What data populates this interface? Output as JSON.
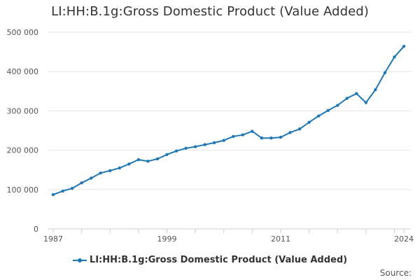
{
  "chart_data": {
    "type": "line",
    "title": "LI:HH:B.1g:Gross Domestic Product (Value Added)",
    "xlabel": "",
    "ylabel": "",
    "x_tick_labels": [
      "1987",
      "1999",
      "2011",
      "2024"
    ],
    "x_ticks": [
      1987,
      1999,
      2011,
      2024
    ],
    "y_tick_labels": [
      "0",
      "100 000",
      "200 000",
      "300 000",
      "400 000",
      "500 000"
    ],
    "y_ticks": [
      0,
      100000,
      200000,
      300000,
      400000,
      500000
    ],
    "xlim": [
      1987,
      2024
    ],
    "ylim": [
      0,
      500000
    ],
    "grid": true,
    "legend_position": "bottom-center",
    "series": [
      {
        "name": "LI:HH:B.1g:Gross Domestic Product (Value Added)",
        "color": "#1f77b4",
        "x": [
          1987,
          1988,
          1989,
          1990,
          1991,
          1992,
          1993,
          1994,
          1995,
          1996,
          1997,
          1998,
          1999,
          2000,
          2001,
          2002,
          2003,
          2004,
          2005,
          2006,
          2007,
          2008,
          2009,
          2010,
          2011,
          2012,
          2013,
          2014,
          2015,
          2016,
          2017,
          2018,
          2019,
          2020,
          2021,
          2022,
          2023,
          2024
        ],
        "values": [
          87000,
          96000,
          103000,
          117000,
          129000,
          142000,
          148000,
          155000,
          165000,
          176000,
          172000,
          178000,
          189000,
          198000,
          205000,
          209000,
          214000,
          219000,
          225000,
          235000,
          239000,
          248000,
          231000,
          231000,
          233000,
          245000,
          254000,
          271000,
          287000,
          301000,
          314000,
          332000,
          344000,
          321000,
          354000,
          397000,
          437000,
          464000
        ]
      }
    ]
  },
  "source_label": "Source:"
}
